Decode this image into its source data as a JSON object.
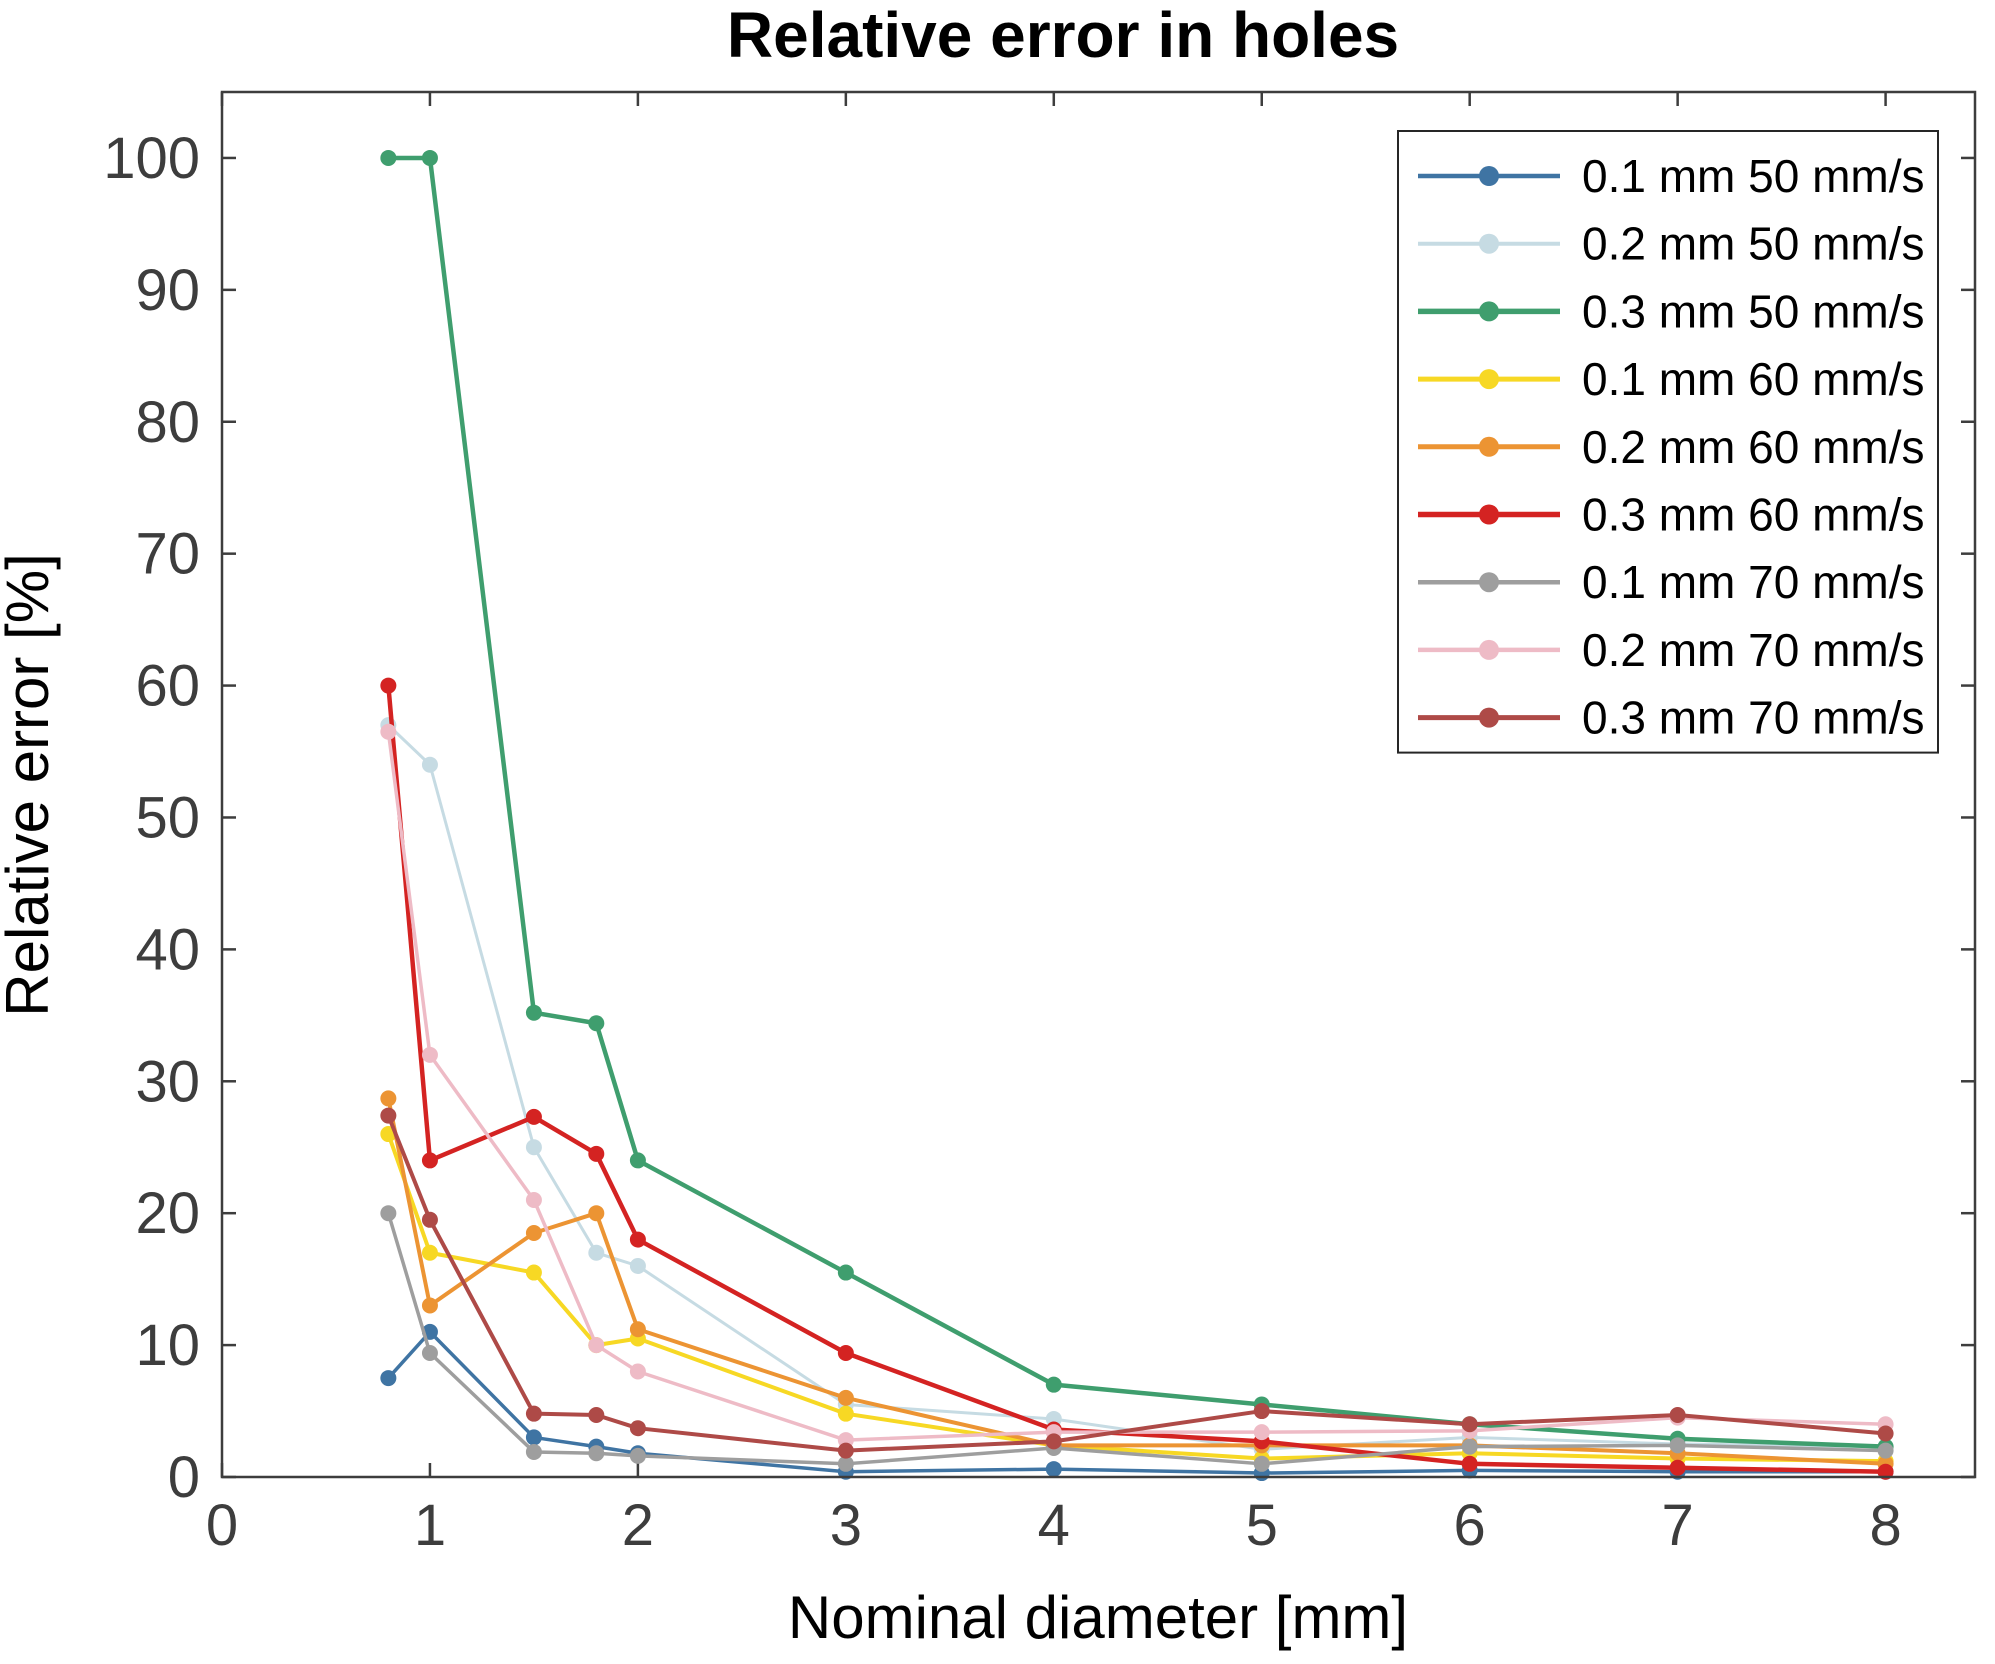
{
  "title": "Relative error in holes",
  "colors": {
    "axis": "#3d3d3d",
    "tick_text": "#3d3d3d",
    "title_text": "#262626",
    "legend_text": "#000000",
    "background": "#ffffff",
    "legend_border": "#262626"
  },
  "chart_data": {
    "type": "line",
    "title": "Relative error in holes",
    "xlabel": "Nominal diameter [mm]",
    "ylabel": "Relative error [%]",
    "xlim": [
      0,
      8.43
    ],
    "ylim": [
      0,
      105
    ],
    "xticks": [
      0,
      1,
      2,
      3,
      4,
      5,
      6,
      7,
      8
    ],
    "yticks": [
      0,
      10,
      20,
      30,
      40,
      50,
      60,
      70,
      80,
      90,
      100
    ],
    "grid": false,
    "legend_position": "upper right",
    "marker": "circle",
    "x": [
      0.8,
      1,
      1.5,
      1.8,
      2,
      3,
      4,
      5,
      6,
      7,
      8
    ],
    "series": [
      {
        "name": "0.1 mm 50 mm/s",
        "color": "#3f74a3",
        "width": 3.5,
        "values": [
          7.5,
          11,
          3,
          2.3,
          1.8,
          0.4,
          0.6,
          0.3,
          0.5,
          0.4,
          0.4
        ]
      },
      {
        "name": "0.2 mm 50 mm/s",
        "color": "#c6dbe3",
        "width": 3,
        "values": [
          57,
          54,
          25,
          17,
          16,
          5.5,
          4.4,
          2.1,
          3,
          2.5,
          2.3
        ]
      },
      {
        "name": "0.3 mm 50 mm/s",
        "color": "#3f9e6e",
        "width": 4.5,
        "values": [
          100,
          100,
          35.2,
          34.4,
          24,
          15.5,
          7,
          5.5,
          4,
          2.9,
          2.3
        ]
      },
      {
        "name": "0.1 mm 60 mm/s",
        "color": "#f7d824",
        "width": 4,
        "values": [
          26,
          17,
          15.5,
          10,
          10.5,
          4.8,
          2.4,
          1.4,
          1.8,
          1.4,
          1.2
        ]
      },
      {
        "name": "0.2 mm 60 mm/s",
        "color": "#ec9433",
        "width": 4,
        "values": [
          28.7,
          13,
          18.5,
          20,
          11.2,
          6,
          2.4,
          2.4,
          2.4,
          1.8,
          1
        ]
      },
      {
        "name": "0.3 mm 60 mm/s",
        "color": "#d42322",
        "width": 4.5,
        "values": [
          60,
          24,
          27.3,
          24.5,
          18,
          9.4,
          3.6,
          2.7,
          1,
          0.7,
          0.4
        ]
      },
      {
        "name": "0.1 mm 70 mm/s",
        "color": "#9e9e9e",
        "width": 3.5,
        "values": [
          20,
          9.4,
          1.9,
          1.8,
          1.6,
          1,
          2.2,
          1,
          2.3,
          2.4,
          2
        ]
      },
      {
        "name": "0.2 mm 70 mm/s",
        "color": "#eebbc6",
        "width": 3.5,
        "values": [
          56.5,
          32,
          21,
          10,
          8,
          2.8,
          3.4,
          3.4,
          3.5,
          4.5,
          4
        ]
      },
      {
        "name": "0.3 mm 70 mm/s",
        "color": "#ae4a47",
        "width": 4,
        "values": [
          27.4,
          19.5,
          4.8,
          4.7,
          3.7,
          2,
          2.7,
          5,
          4,
          4.7,
          3.3
        ]
      }
    ]
  }
}
